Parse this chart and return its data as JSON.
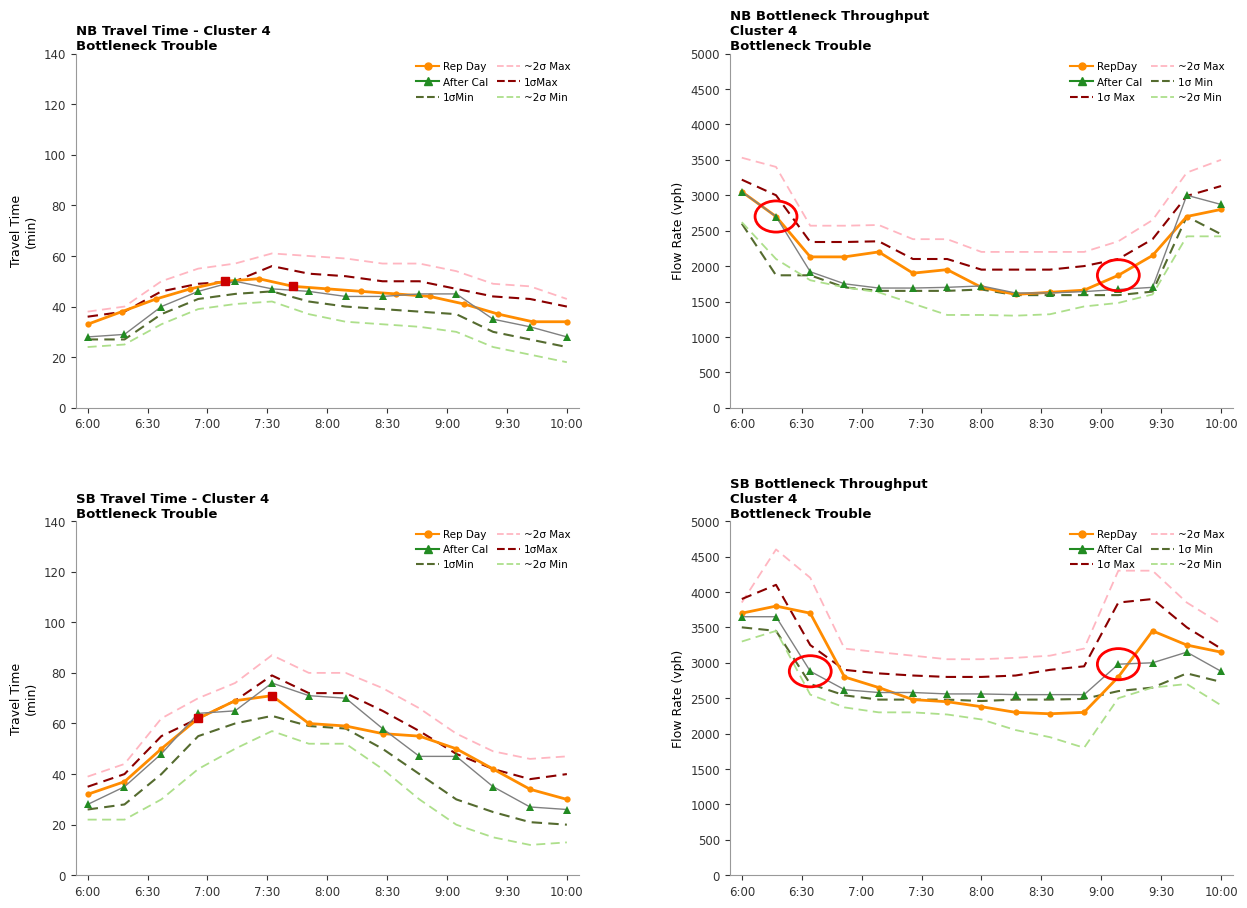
{
  "time_x": [
    0,
    0.5,
    1.0,
    1.5,
    2.0,
    2.5,
    3.0,
    3.5,
    4.0,
    4.5,
    5.0,
    5.5,
    6.0,
    6.5,
    7.0,
    7.5,
    8.0
  ],
  "x_tick_pos": [
    0,
    0.5,
    1.0,
    1.5,
    2.0,
    2.5,
    3.0,
    3.5,
    4.0,
    4.5,
    5.0,
    5.5,
    6.0,
    6.5,
    7.0,
    7.5,
    8.0
  ],
  "x_tick_labels": [
    "6:00",
    "6:30",
    "7:00",
    "7:30",
    "8:00",
    "8:30",
    "9:00",
    "9:30",
    "10:00"
  ],
  "x_tick_show": [
    0,
    0.5,
    1.0,
    1.5,
    2.0,
    2.5,
    3.0,
    3.5,
    4.0
  ],
  "nb_tt": {
    "title": "NB Travel Time - Cluster 4\nBottleneck Trouble",
    "ylabel": "Travel Time\n(min)",
    "ylim": [
      0,
      140
    ],
    "yticks": [
      0,
      20,
      40,
      60,
      80,
      100,
      120,
      140
    ],
    "rep_day": [
      33,
      38,
      43,
      47,
      50,
      51,
      48,
      47,
      46,
      45,
      44,
      41,
      37,
      34,
      34
    ],
    "after_cal": [
      28,
      29,
      40,
      46,
      50,
      47,
      46,
      44,
      44,
      45,
      45,
      35,
      32,
      28
    ],
    "sigma1_min": [
      27,
      27,
      37,
      43,
      45,
      46,
      42,
      40,
      39,
      38,
      37,
      30,
      27,
      24
    ],
    "sigma1_max": [
      36,
      38,
      46,
      49,
      50,
      56,
      53,
      52,
      50,
      50,
      47,
      44,
      43,
      40
    ],
    "sigma2_max": [
      38,
      40,
      50,
      55,
      57,
      61,
      60,
      59,
      57,
      57,
      54,
      49,
      48,
      43
    ],
    "sigma2_min": [
      24,
      25,
      33,
      39,
      41,
      42,
      37,
      34,
      33,
      32,
      30,
      24,
      21,
      18
    ],
    "red_sq_idx": [
      4,
      6
    ]
  },
  "nb_tp": {
    "title": "NB Bottleneck Throughput\nCluster 4\nBottleneck Trouble",
    "ylabel": "Flow Rate (vph)",
    "ylim": [
      0,
      5000
    ],
    "yticks": [
      0,
      500,
      1000,
      1500,
      2000,
      2500,
      3000,
      3500,
      4000,
      4500,
      5000
    ],
    "rep_day": [
      3050,
      2700,
      2130,
      2130,
      2200,
      1900,
      1950,
      1700,
      1600,
      1630,
      1660,
      1870,
      2150,
      2700,
      2800
    ],
    "after_cal": [
      3050,
      2700,
      1920,
      1750,
      1690,
      1690,
      1700,
      1720,
      1620,
      1620,
      1640,
      1670,
      1700,
      3000,
      2870
    ],
    "sigma1_min": [
      2600,
      1870,
      1870,
      1700,
      1650,
      1650,
      1650,
      1670,
      1590,
      1590,
      1590,
      1590,
      1640,
      2700,
      2450
    ],
    "sigma1_max": [
      3220,
      3000,
      2340,
      2340,
      2350,
      2100,
      2100,
      1950,
      1950,
      1950,
      2000,
      2100,
      2380,
      2990,
      3130
    ],
    "sigma2_max": [
      3530,
      3400,
      2570,
      2570,
      2580,
      2380,
      2380,
      2200,
      2200,
      2200,
      2200,
      2350,
      2650,
      3320,
      3500
    ],
    "sigma2_min": [
      2620,
      2100,
      1800,
      1700,
      1630,
      1470,
      1310,
      1310,
      1300,
      1320,
      1430,
      1480,
      1600,
      2420,
      2420
    ],
    "circle1_xi": 1,
    "circle1_yi": 2700,
    "circle2_xi": 11,
    "circle2_yi": 1870
  },
  "sb_tt": {
    "title": "SB Travel Time - Cluster 4\nBottleneck Trouble",
    "ylabel": "Travel Time\n(min)",
    "ylim": [
      0,
      140
    ],
    "yticks": [
      0,
      20,
      40,
      60,
      80,
      100,
      120,
      140
    ],
    "rep_day": [
      32,
      37,
      50,
      62,
      69,
      71,
      60,
      59,
      56,
      55,
      50,
      42,
      34,
      30
    ],
    "after_cal": [
      28,
      35,
      48,
      64,
      65,
      76,
      71,
      70,
      58,
      47,
      47,
      35,
      27,
      26
    ],
    "sigma1_min": [
      26,
      28,
      40,
      55,
      60,
      63,
      59,
      58,
      50,
      40,
      30,
      25,
      21,
      20
    ],
    "sigma1_max": [
      35,
      40,
      55,
      62,
      69,
      79,
      72,
      72,
      65,
      57,
      48,
      42,
      38,
      40
    ],
    "sigma2_max": [
      39,
      44,
      62,
      70,
      76,
      87,
      80,
      80,
      74,
      66,
      56,
      49,
      46,
      47
    ],
    "sigma2_min": [
      22,
      22,
      30,
      42,
      50,
      57,
      52,
      52,
      42,
      30,
      20,
      15,
      12,
      13
    ],
    "red_sq_idx": [
      3,
      5
    ]
  },
  "sb_tp": {
    "title": "SB Bottleneck Throughput\nCluster 4\nBottleneck Trouble",
    "ylabel": "Flow Rate (vph)",
    "ylim": [
      0,
      5000
    ],
    "yticks": [
      0,
      500,
      1000,
      1500,
      2000,
      2500,
      3000,
      3500,
      4000,
      4500,
      5000
    ],
    "rep_day": [
      3700,
      3800,
      3700,
      2800,
      2650,
      2480,
      2450,
      2380,
      2300,
      2280,
      2300,
      2800,
      3450,
      3250,
      3150
    ],
    "after_cal": [
      3650,
      3650,
      2880,
      2620,
      2580,
      2580,
      2560,
      2560,
      2550,
      2550,
      2550,
      2980,
      3000,
      3150,
      2880
    ],
    "sigma1_min": [
      3500,
      3450,
      2700,
      2540,
      2480,
      2480,
      2480,
      2460,
      2480,
      2480,
      2490,
      2600,
      2650,
      2850,
      2730
    ],
    "sigma1_max": [
      3900,
      4100,
      3250,
      2900,
      2850,
      2820,
      2800,
      2800,
      2820,
      2900,
      2950,
      3850,
      3900,
      3500,
      3200
    ],
    "sigma2_max": [
      3850,
      4600,
      4200,
      3200,
      3150,
      3100,
      3050,
      3050,
      3070,
      3100,
      3200,
      4300,
      4300,
      3850,
      3550
    ],
    "sigma2_min": [
      3300,
      3450,
      2550,
      2370,
      2300,
      2300,
      2270,
      2200,
      2050,
      1950,
      1800,
      2500,
      2650,
      2700,
      2400
    ],
    "circle1_xi": 2,
    "circle1_yi": 2880,
    "circle2_xi": 11,
    "circle2_yi": 2980
  },
  "colors": {
    "rep_day": "#FF8C00",
    "after_cal": "#228B22",
    "sigma1_min": "#556B2F",
    "sigma1_max": "#8B0000",
    "sigma2_max": "#FFB6C1",
    "sigma2_min": "#ADDF8B"
  },
  "legend_nb_tt": [
    [
      "Rep Day",
      "solid",
      "#FF8C00",
      "o"
    ],
    [
      "After Cal",
      "solid",
      "#228B22",
      "^"
    ],
    [
      "1σMin",
      "dashed",
      "#556B2F",
      ""
    ],
    [
      "~2σ Max",
      "dashed",
      "#FFB6C1",
      ""
    ],
    [
      "1σMax",
      "dashed",
      "#8B0000",
      ""
    ],
    [
      "~2σ Min",
      "dashed",
      "#ADDF8B",
      ""
    ]
  ],
  "legend_nb_tp": [
    [
      "RepDay",
      "solid",
      "#FF8C00",
      "o"
    ],
    [
      "After Cal",
      "solid",
      "#228B22",
      "^"
    ],
    [
      "1σ Max",
      "dashed",
      "#8B0000",
      ""
    ],
    [
      "~2σ Max",
      "dashed",
      "#FFB6C1",
      ""
    ],
    [
      "1σ Min",
      "dashed",
      "#556B2F",
      ""
    ],
    [
      "~2σ Min",
      "dashed",
      "#ADDF8B",
      ""
    ]
  ]
}
